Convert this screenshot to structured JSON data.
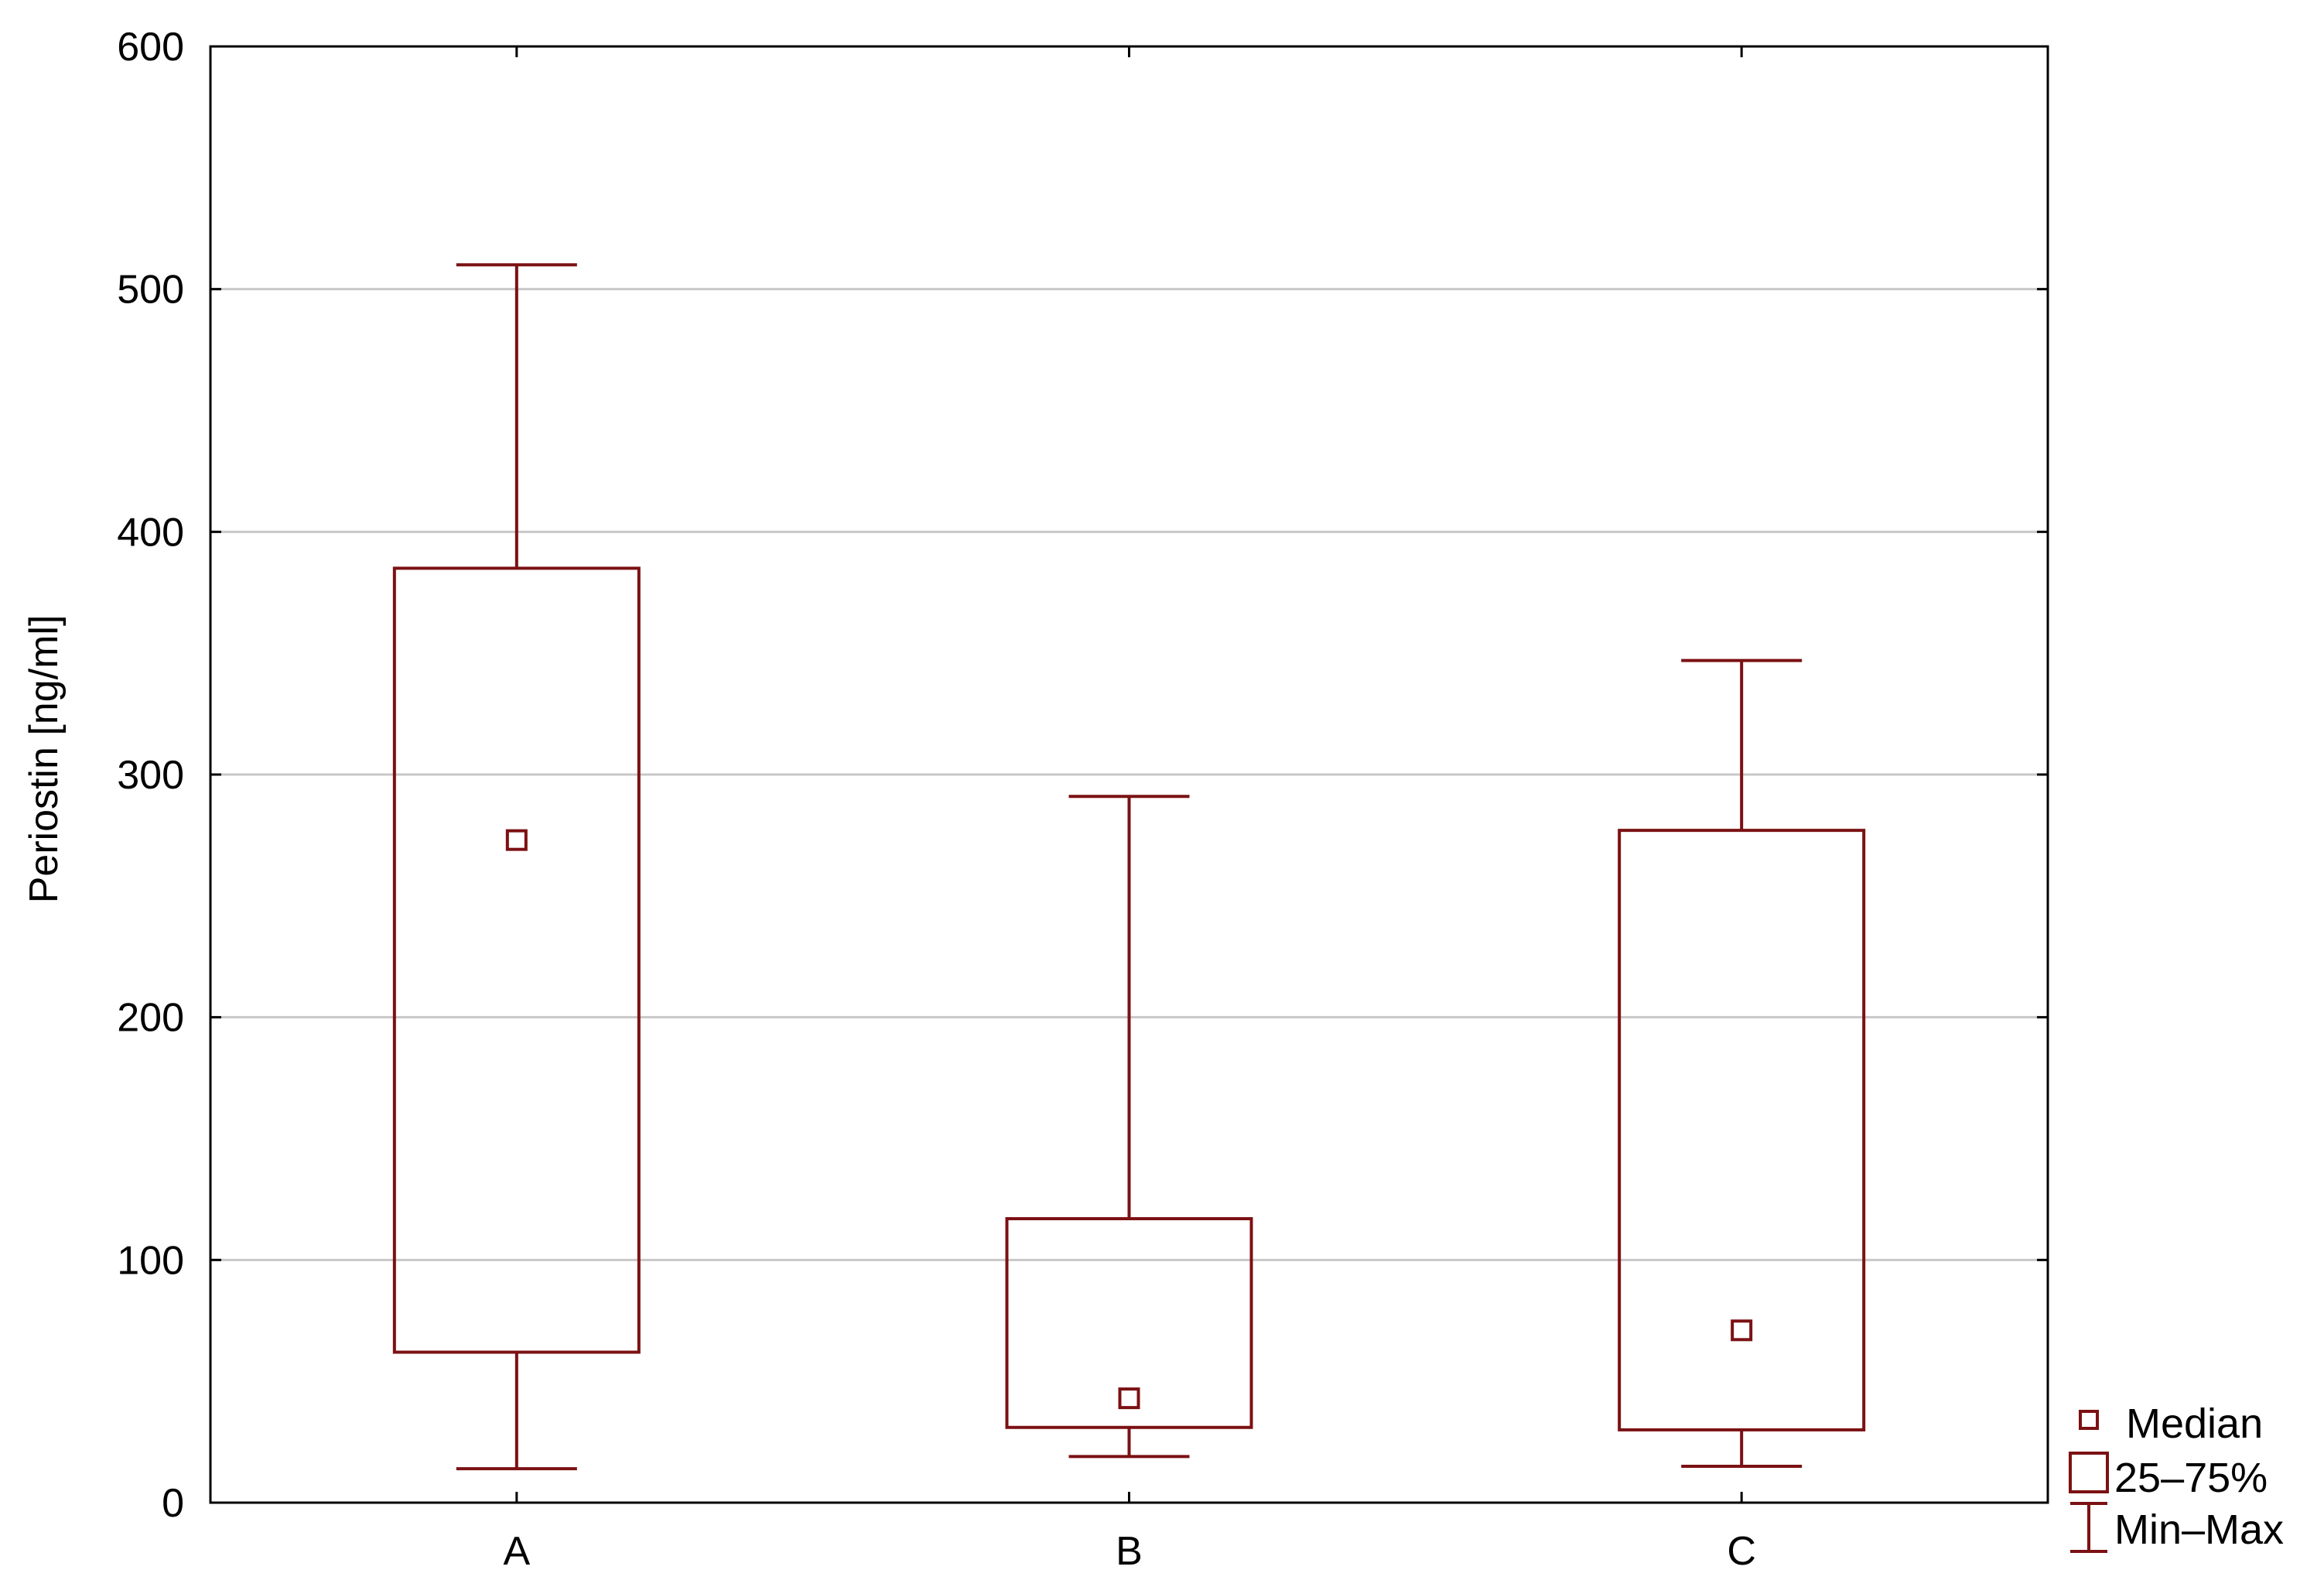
{
  "chart_data": {
    "type": "box",
    "ylabel": "Periostin  [ng/ml]",
    "xlabel": "",
    "ylim": [
      0,
      600
    ],
    "yticks": [
      0,
      100,
      200,
      300,
      400,
      500,
      600
    ],
    "grid": "horizontal",
    "categories": [
      "A",
      "B",
      "C"
    ],
    "series": [
      {
        "category": "A",
        "min": 14,
        "q1": 62,
        "median": 273,
        "q3": 385,
        "max": 510
      },
      {
        "category": "B",
        "min": 19,
        "q1": 31,
        "median": 43,
        "q3": 117,
        "max": 291
      },
      {
        "category": "C",
        "min": 15,
        "q1": 30,
        "median": 71,
        "q3": 277,
        "max": 347
      }
    ],
    "legend": {
      "position": "bottom-right",
      "items": [
        {
          "symbol": "median",
          "label": "Median"
        },
        {
          "symbol": "box",
          "label": "25–75%"
        },
        {
          "symbol": "whisker",
          "label": "Min–Max"
        }
      ]
    },
    "colors": {
      "series": "#7b1113",
      "grid": "#c8c8c8",
      "axis": "#000000"
    }
  }
}
